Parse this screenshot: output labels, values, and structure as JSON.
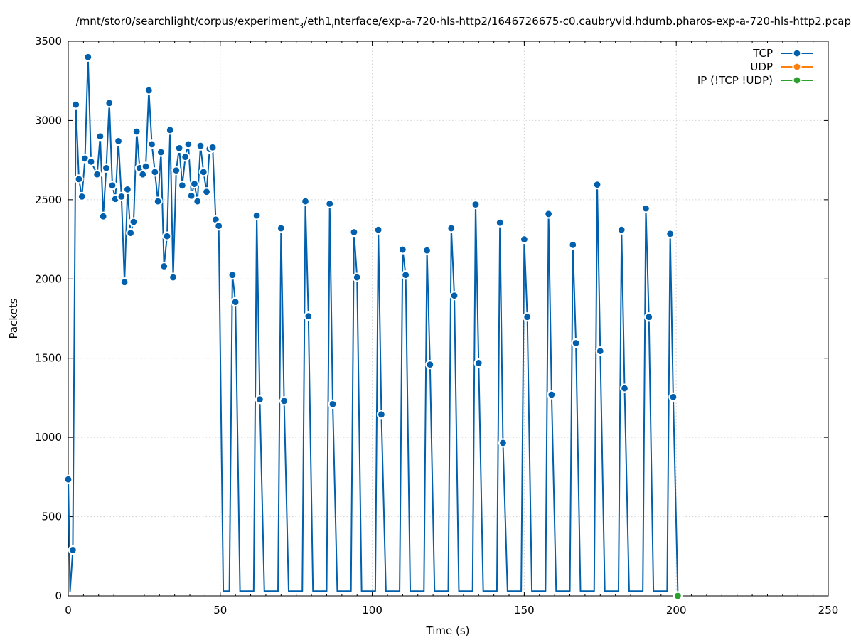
{
  "chart_data": {
    "type": "line",
    "title": "/mnt/stor0/searchlight/corpus/experiment",
    "title_sub1": "3",
    "title_mid": "/eth1",
    "title_sub2": "i",
    "title_end": "nterface/exp-a-720-hls-http2/1646726675-c0.caubryvid.hdumb.pharos-exp-a-720-hls-http2.pcap",
    "xlabel": "Time (s)",
    "ylabel": "Packets",
    "xlim": [
      0,
      250
    ],
    "ylim": [
      0,
      3500
    ],
    "x_ticks": [
      0,
      50,
      100,
      150,
      200,
      250
    ],
    "y_ticks": [
      0,
      500,
      1000,
      1500,
      2000,
      2500,
      3000,
      3500
    ],
    "grid": true,
    "legend_position": "top-right",
    "series": [
      {
        "name": "TCP",
        "color": "#0060ad",
        "points": [
          [
            0,
            735
          ],
          [
            0.6,
            30
          ],
          [
            1.5,
            290
          ],
          [
            2.5,
            3100
          ],
          [
            3.5,
            2630
          ],
          [
            4.5,
            2520
          ],
          [
            5.5,
            2760
          ],
          [
            6.5,
            3400
          ],
          [
            7.5,
            2740
          ],
          [
            9.5,
            2660
          ],
          [
            10.5,
            2900
          ],
          [
            11.5,
            2395
          ],
          [
            12.5,
            2700
          ],
          [
            13.5,
            3110
          ],
          [
            14.5,
            2590
          ],
          [
            15.5,
            2505
          ],
          [
            16.5,
            2870
          ],
          [
            17.5,
            2520
          ],
          [
            18.5,
            1980
          ],
          [
            19.5,
            2565
          ],
          [
            20.5,
            2290
          ],
          [
            21.5,
            2360
          ],
          [
            22.5,
            2930
          ],
          [
            23.5,
            2700
          ],
          [
            24.5,
            2660
          ],
          [
            25.5,
            2710
          ],
          [
            26.5,
            3190
          ],
          [
            27.5,
            2850
          ],
          [
            28.5,
            2675
          ],
          [
            29.5,
            2490
          ],
          [
            30.5,
            2800
          ],
          [
            31.5,
            2080
          ],
          [
            32.5,
            2270
          ],
          [
            33.5,
            2940
          ],
          [
            34.5,
            2010
          ],
          [
            35.5,
            2685
          ],
          [
            36.5,
            2825
          ],
          [
            37.5,
            2590
          ],
          [
            38.5,
            2770
          ],
          [
            39.5,
            2850
          ],
          [
            40.5,
            2525
          ],
          [
            41.5,
            2600
          ],
          [
            42.5,
            2490
          ],
          [
            43.5,
            2840
          ],
          [
            44.5,
            2675
          ],
          [
            45.5,
            2550
          ],
          [
            46.5,
            2820
          ],
          [
            47.5,
            2830
          ],
          [
            48.5,
            2375
          ],
          [
            49.5,
            2335
          ],
          [
            51,
            30
          ],
          [
            53,
            30
          ],
          [
            54,
            2025
          ],
          [
            55,
            1855
          ],
          [
            56.5,
            30
          ],
          [
            61,
            30
          ],
          [
            62,
            2400
          ],
          [
            63,
            1240
          ],
          [
            64.5,
            30
          ],
          [
            69,
            30
          ],
          [
            70,
            2320
          ],
          [
            71,
            1230
          ],
          [
            72.5,
            30
          ],
          [
            77,
            30
          ],
          [
            78,
            2490
          ],
          [
            79,
            1765
          ],
          [
            80.5,
            30
          ],
          [
            85,
            30
          ],
          [
            86,
            2475
          ],
          [
            87,
            1210
          ],
          [
            88.5,
            30
          ],
          [
            93,
            30
          ],
          [
            94,
            2295
          ],
          [
            95,
            2010
          ],
          [
            96.5,
            30
          ],
          [
            101,
            30
          ],
          [
            102,
            2310
          ],
          [
            103,
            1145
          ],
          [
            104.5,
            30
          ],
          [
            109,
            30
          ],
          [
            110,
            2185
          ],
          [
            111,
            2025
          ],
          [
            112.5,
            30
          ],
          [
            117,
            30
          ],
          [
            118,
            2180
          ],
          [
            119,
            1460
          ],
          [
            120.5,
            30
          ],
          [
            125,
            30
          ],
          [
            126,
            2320
          ],
          [
            127,
            1895
          ],
          [
            128.5,
            30
          ],
          [
            133,
            30
          ],
          [
            134,
            2470
          ],
          [
            135,
            1470
          ],
          [
            136.5,
            30
          ],
          [
            141,
            30
          ],
          [
            142,
            2355
          ],
          [
            143,
            965
          ],
          [
            144.5,
            30
          ],
          [
            149,
            30
          ],
          [
            150,
            2250
          ],
          [
            151,
            1760
          ],
          [
            152.5,
            30
          ],
          [
            157,
            30
          ],
          [
            158,
            2410
          ],
          [
            159,
            1270
          ],
          [
            160.5,
            30
          ],
          [
            165,
            30
          ],
          [
            166,
            2215
          ],
          [
            167,
            1595
          ],
          [
            168.5,
            30
          ],
          [
            173,
            30
          ],
          [
            174,
            2595
          ],
          [
            175,
            1545
          ],
          [
            176.5,
            30
          ],
          [
            181,
            30
          ],
          [
            182,
            2310
          ],
          [
            183,
            1310
          ],
          [
            184.5,
            30
          ],
          [
            189,
            30
          ],
          [
            190,
            2445
          ],
          [
            191,
            1760
          ],
          [
            192.5,
            30
          ],
          [
            197,
            30
          ],
          [
            198,
            2285
          ],
          [
            199,
            1255
          ],
          [
            200.5,
            30
          ]
        ]
      },
      {
        "name": "UDP",
        "color": "#ff7f0e",
        "points": []
      },
      {
        "name": "IP (!TCP  !UDP)",
        "color": "#2ca02c",
        "points": [
          [
            200.5,
            0
          ]
        ]
      }
    ]
  }
}
